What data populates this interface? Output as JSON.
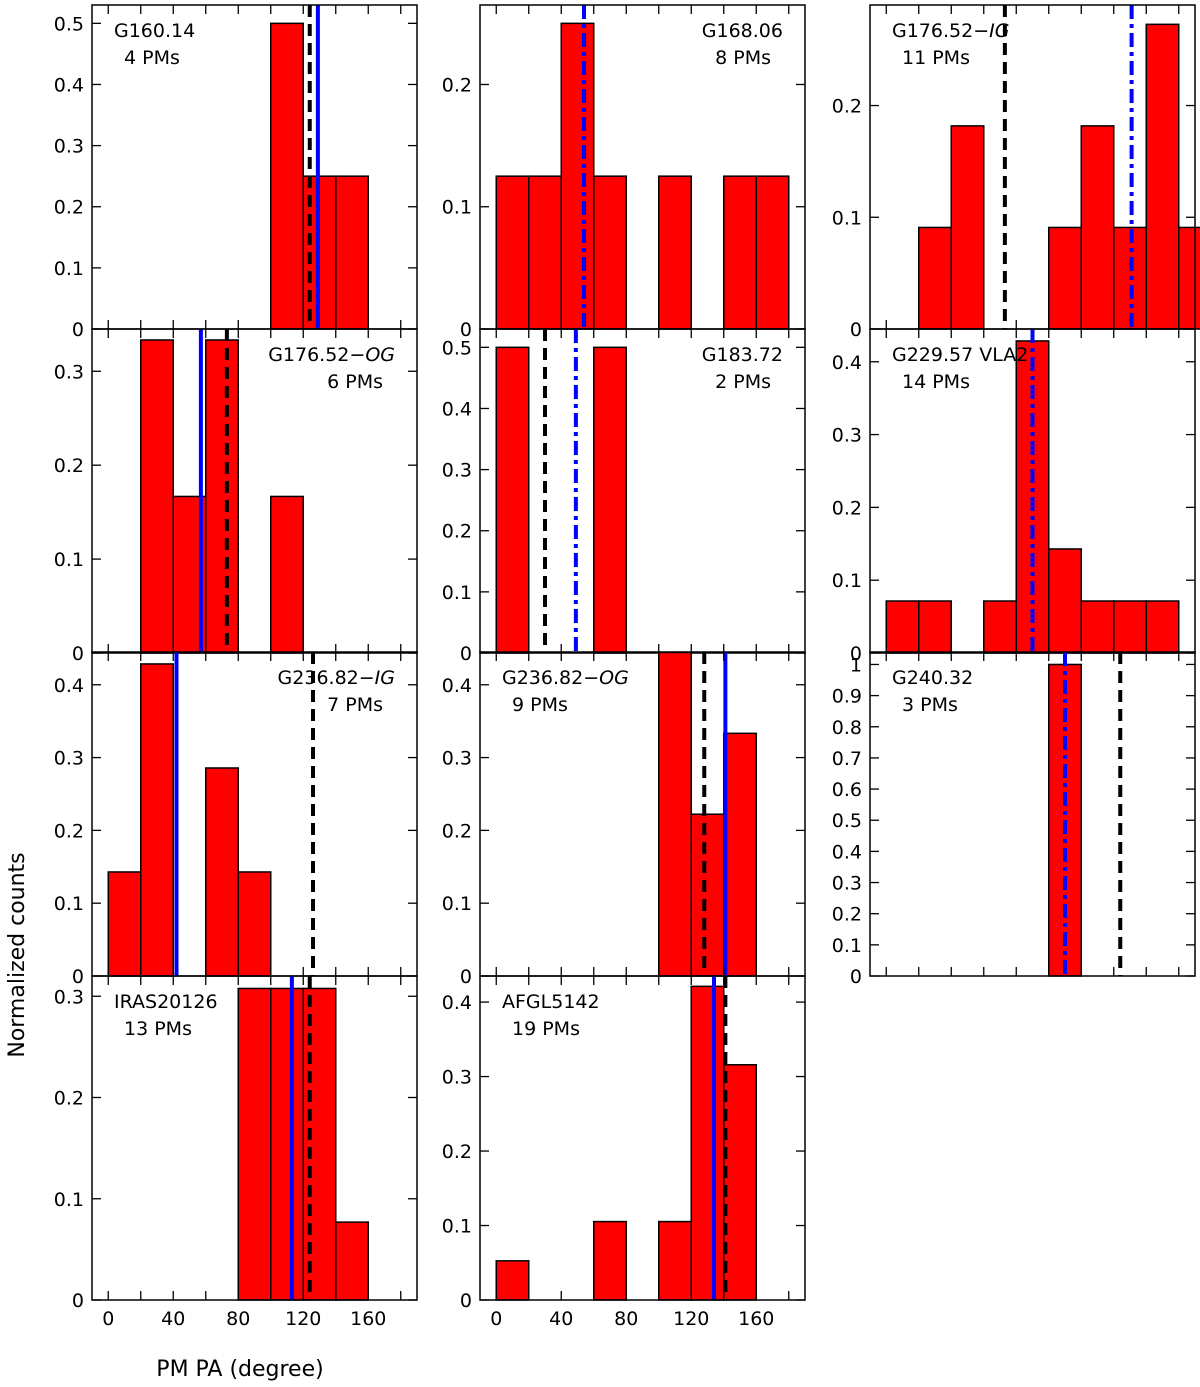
{
  "chart_data": {
    "type": "bar",
    "xlabel": "PM PA (degree)",
    "ylabel": "Normalized counts",
    "xlim": [
      -10,
      190
    ],
    "bin_width": 20,
    "x_tick_labels": [
      "0",
      "40",
      "80",
      "120",
      "160"
    ],
    "colors": {
      "bar_fill": "#ff0000",
      "bar_edge": "#000000",
      "blue": "#0000ff",
      "black": "#000000"
    },
    "panels": [
      {
        "id": "g160",
        "name": "G160.14",
        "name_suffix": "",
        "pm_count": "4 PMs",
        "label_align": "left",
        "ylim": [
          0,
          0.53
        ],
        "yticks": [
          0,
          0.1,
          0.2,
          0.3,
          0.4,
          0.5
        ],
        "ytick_labels": [
          "0",
          "0.1",
          "0.2",
          "0.3",
          "0.4",
          "0.5"
        ],
        "bins": [
          {
            "left": 100,
            "value": 0.5
          },
          {
            "left": 120,
            "value": 0.25
          },
          {
            "left": 140,
            "value": 0.25
          }
        ],
        "lines": [
          {
            "x": 124,
            "style": "dashed",
            "color": "black"
          },
          {
            "x": 129,
            "style": "solid",
            "color": "blue"
          }
        ]
      },
      {
        "id": "g168",
        "name": "G168.06",
        "name_suffix": "",
        "pm_count": "8 PMs",
        "label_align": "right",
        "ylim": [
          0,
          0.265
        ],
        "yticks": [
          0,
          0.1,
          0.2
        ],
        "ytick_labels": [
          "0",
          "0.1",
          "0.2"
        ],
        "bins": [
          {
            "left": 0,
            "value": 0.125
          },
          {
            "left": 20,
            "value": 0.125
          },
          {
            "left": 40,
            "value": 0.25
          },
          {
            "left": 60,
            "value": 0.125
          },
          {
            "left": 100,
            "value": 0.125
          },
          {
            "left": 140,
            "value": 0.125
          },
          {
            "left": 160,
            "value": 0.125
          }
        ],
        "lines": [
          {
            "x": 54,
            "style": "dashdot",
            "color": "blue"
          }
        ]
      },
      {
        "id": "g176ig",
        "name": "G176.52−",
        "name_suffix": "IG",
        "pm_count": "11 PMs",
        "label_align": "left",
        "ylim": [
          0,
          0.29
        ],
        "yticks": [
          0,
          0.1,
          0.2
        ],
        "ytick_labels": [
          "0",
          "0.1",
          "0.2"
        ],
        "bins": [
          {
            "left": 20,
            "value": 0.0909
          },
          {
            "left": 40,
            "value": 0.1818
          },
          {
            "left": 100,
            "value": 0.0909
          },
          {
            "left": 120,
            "value": 0.1818
          },
          {
            "left": 140,
            "value": 0.0909
          },
          {
            "left": 160,
            "value": 0.2727
          },
          {
            "left": 180,
            "value": 0.0909
          }
        ],
        "lines": [
          {
            "x": 73,
            "style": "dashed",
            "color": "black"
          },
          {
            "x": 151,
            "style": "dashdot",
            "color": "blue"
          }
        ]
      },
      {
        "id": "g176og",
        "name": "G176.52−",
        "name_suffix": "OG",
        "pm_count": "6 PMs",
        "label_align": "right",
        "ylim": [
          0,
          0.345
        ],
        "yticks": [
          0,
          0.1,
          0.2,
          0.3
        ],
        "ytick_labels": [
          "0",
          "0.1",
          "0.2",
          "0.3"
        ],
        "bins": [
          {
            "left": 20,
            "value": 0.3333
          },
          {
            "left": 40,
            "value": 0.1667
          },
          {
            "left": 60,
            "value": 0.3333
          },
          {
            "left": 100,
            "value": 0.1667
          }
        ],
        "lines": [
          {
            "x": 57,
            "style": "solid",
            "color": "blue"
          },
          {
            "x": 73,
            "style": "dashed",
            "color": "black"
          }
        ]
      },
      {
        "id": "g183",
        "name": "G183.72",
        "name_suffix": "",
        "pm_count": "2 PMs",
        "label_align": "right",
        "ylim": [
          0,
          0.53
        ],
        "yticks": [
          0,
          0.1,
          0.2,
          0.3,
          0.4,
          0.5
        ],
        "ytick_labels": [
          "0",
          "0.1",
          "0.2",
          "0.3",
          "0.4",
          "0.5"
        ],
        "bins": [
          {
            "left": 0,
            "value": 0.5
          },
          {
            "left": 60,
            "value": 0.5
          }
        ],
        "lines": [
          {
            "x": 30,
            "style": "dashed",
            "color": "black"
          },
          {
            "x": 49,
            "style": "dashdot",
            "color": "blue"
          }
        ]
      },
      {
        "id": "g229",
        "name": "G229.57 VLA2",
        "name_suffix": "",
        "pm_count": "14 PMs",
        "label_align": "left",
        "ylim": [
          0,
          0.445
        ],
        "yticks": [
          0,
          0.1,
          0.2,
          0.3,
          0.4
        ],
        "ytick_labels": [
          "0",
          "0.1",
          "0.2",
          "0.3",
          "0.4"
        ],
        "bins": [
          {
            "left": 0,
            "value": 0.0714
          },
          {
            "left": 20,
            "value": 0.0714
          },
          {
            "left": 60,
            "value": 0.0714
          },
          {
            "left": 80,
            "value": 0.4286
          },
          {
            "left": 100,
            "value": 0.1429
          },
          {
            "left": 120,
            "value": 0.0714
          },
          {
            "left": 140,
            "value": 0.0714
          },
          {
            "left": 160,
            "value": 0.0714
          }
        ],
        "lines": [
          {
            "x": 90,
            "style": "dashdot",
            "color": "blue"
          }
        ]
      },
      {
        "id": "g236ig",
        "name": "G236.82−",
        "name_suffix": "IG",
        "pm_count": "7 PMs",
        "label_align": "right",
        "ylim": [
          0,
          0.445
        ],
        "yticks": [
          0,
          0.1,
          0.2,
          0.3,
          0.4
        ],
        "ytick_labels": [
          "0",
          "0.1",
          "0.2",
          "0.3",
          "0.4"
        ],
        "bins": [
          {
            "left": 0,
            "value": 0.1429
          },
          {
            "left": 20,
            "value": 0.4286
          },
          {
            "left": 60,
            "value": 0.2857
          },
          {
            "left": 80,
            "value": 0.1429
          }
        ],
        "lines": [
          {
            "x": 42,
            "style": "solid",
            "color": "blue"
          },
          {
            "x": 126,
            "style": "dashed",
            "color": "black"
          }
        ]
      },
      {
        "id": "g236og",
        "name": "G236.82−",
        "name_suffix": "OG",
        "pm_count": "9 PMs",
        "label_align": "left",
        "ylim": [
          0,
          0.445
        ],
        "yticks": [
          0,
          0.1,
          0.2,
          0.3,
          0.4
        ],
        "ytick_labels": [
          "0",
          "0.1",
          "0.2",
          "0.3",
          "0.4"
        ],
        "bins": [
          {
            "left": 100,
            "value": 0.4444
          },
          {
            "left": 120,
            "value": 0.2222
          },
          {
            "left": 140,
            "value": 0.3333
          }
        ],
        "lines": [
          {
            "x": 128,
            "style": "dashed",
            "color": "black"
          },
          {
            "x": 141,
            "style": "solid",
            "color": "blue"
          }
        ]
      },
      {
        "id": "g240",
        "name": "G240.32",
        "name_suffix": "",
        "pm_count": "3 PMs",
        "label_align": "left",
        "ylim": [
          0,
          1.04
        ],
        "yticks": [
          0,
          0.1,
          0.2,
          0.3,
          0.4,
          0.5,
          0.6,
          0.7,
          0.8,
          0.9,
          1
        ],
        "ytick_labels": [
          "0",
          "0.1",
          "0.2",
          "0.3",
          "0.4",
          "0.5",
          "0.6",
          "0.7",
          "0.8",
          "0.9",
          "1"
        ],
        "bins": [
          {
            "left": 100,
            "value": 1.0
          }
        ],
        "lines": [
          {
            "x": 110,
            "style": "dashdot",
            "color": "blue"
          },
          {
            "x": 144,
            "style": "dashed",
            "color": "black"
          }
        ]
      },
      {
        "id": "iras",
        "name": "IRAS20126",
        "name_suffix": "",
        "pm_count": "13 PMs",
        "label_align": "left",
        "ylim": [
          0,
          0.32
        ],
        "yticks": [
          0,
          0.1,
          0.2,
          0.3
        ],
        "ytick_labels": [
          "0",
          "0.1",
          "0.2",
          "0.3"
        ],
        "bins": [
          {
            "left": 80,
            "value": 0.3077
          },
          {
            "left": 100,
            "value": 0.3077
          },
          {
            "left": 120,
            "value": 0.3077
          },
          {
            "left": 140,
            "value": 0.0769
          }
        ],
        "lines": [
          {
            "x": 113,
            "style": "solid",
            "color": "blue"
          },
          {
            "x": 124,
            "style": "dashed",
            "color": "black"
          }
        ]
      },
      {
        "id": "afgl",
        "name": "AFGL5142",
        "name_suffix": "",
        "pm_count": "19 PMs",
        "label_align": "left",
        "ylim": [
          0,
          0.435
        ],
        "yticks": [
          0,
          0.1,
          0.2,
          0.3,
          0.4
        ],
        "ytick_labels": [
          "0",
          "0.1",
          "0.2",
          "0.3",
          "0.4"
        ],
        "bins": [
          {
            "left": 0,
            "value": 0.0526
          },
          {
            "left": 60,
            "value": 0.1053
          },
          {
            "left": 100,
            "value": 0.1053
          },
          {
            "left": 120,
            "value": 0.4211
          },
          {
            "left": 140,
            "value": 0.3158
          }
        ],
        "lines": [
          {
            "x": 134,
            "style": "solid",
            "color": "blue"
          },
          {
            "x": 141,
            "style": "dashed",
            "color": "black"
          }
        ]
      }
    ]
  }
}
